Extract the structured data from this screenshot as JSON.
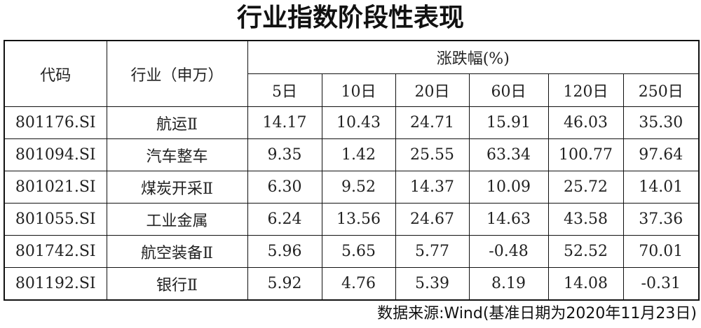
{
  "title": "行业指数阶段性表现",
  "table": {
    "headers": {
      "code": "代码",
      "industry": "行业（申万）",
      "change_group": "涨跌幅(%)",
      "periods": [
        "5日",
        "10日",
        "20日",
        "60日",
        "120日",
        "250日"
      ]
    },
    "rows": [
      {
        "code": "801176.SI",
        "industry": "航运Ⅱ",
        "values": [
          "14.17",
          "10.43",
          "24.71",
          "15.91",
          "46.03",
          "35.30"
        ]
      },
      {
        "code": "801094.SI",
        "industry": "汽车整车",
        "values": [
          "9.35",
          "1.42",
          "25.55",
          "63.34",
          "100.77",
          "97.64"
        ]
      },
      {
        "code": "801021.SI",
        "industry": "煤炭开采Ⅱ",
        "values": [
          "6.30",
          "9.52",
          "14.37",
          "10.09",
          "25.72",
          "14.01"
        ]
      },
      {
        "code": "801055.SI",
        "industry": "工业金属",
        "values": [
          "6.24",
          "13.56",
          "24.67",
          "14.63",
          "43.58",
          "37.36"
        ]
      },
      {
        "code": "801742.SI",
        "industry": "航空装备Ⅱ",
        "values": [
          "5.96",
          "5.65",
          "5.77",
          "-0.48",
          "52.52",
          "70.01"
        ]
      },
      {
        "code": "801192.SI",
        "industry": "银行Ⅱ",
        "values": [
          "5.92",
          "4.76",
          "5.39",
          "8.19",
          "14.08",
          "-0.31"
        ]
      }
    ]
  },
  "source": "数据来源:Wind(基准日期为2020年11月23日)"
}
